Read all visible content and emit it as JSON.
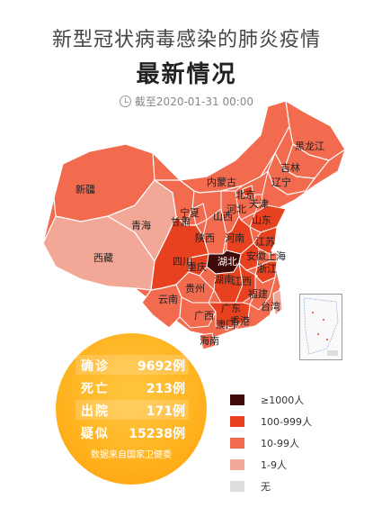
{
  "header": {
    "title": "新型冠状病毒感染的肺炎疫情",
    "subtitle": "最新情况",
    "timestamp": "截至2020-01-31 00:00"
  },
  "colors": {
    "level_1000": "#3e0a0a",
    "level_100": "#e8411f",
    "level_10": "#f26b4f",
    "level_1": "#f3a797",
    "level_0": "#dddddd"
  },
  "provinces": [
    {
      "name": "黑龙江",
      "level": "level_10"
    },
    {
      "name": "吉林",
      "level": "level_10"
    },
    {
      "name": "辽宁",
      "level": "level_10"
    },
    {
      "name": "内蒙古",
      "level": "level_10"
    },
    {
      "name": "新疆",
      "level": "level_10"
    },
    {
      "name": "北京",
      "level": "level_100"
    },
    {
      "name": "天津",
      "level": "level_10"
    },
    {
      "name": "河北",
      "level": "level_10"
    },
    {
      "name": "宁夏",
      "level": "level_10"
    },
    {
      "name": "山西",
      "level": "level_10"
    },
    {
      "name": "山东",
      "level": "level_100"
    },
    {
      "name": "青海",
      "level": "level_1"
    },
    {
      "name": "甘肃",
      "level": "level_10"
    },
    {
      "name": "陕西",
      "level": "level_10"
    },
    {
      "name": "河南",
      "level": "level_100"
    },
    {
      "name": "江苏",
      "level": "level_100"
    },
    {
      "name": "西藏",
      "level": "level_1"
    },
    {
      "name": "四川",
      "level": "level_100"
    },
    {
      "name": "重庆",
      "level": "level_100"
    },
    {
      "name": "湖北",
      "level": "level_1000"
    },
    {
      "name": "安徽",
      "level": "level_100"
    },
    {
      "name": "上海",
      "level": "level_10"
    },
    {
      "name": "浙江",
      "level": "level_100"
    },
    {
      "name": "贵州",
      "level": "level_10"
    },
    {
      "name": "湖南",
      "level": "level_100"
    },
    {
      "name": "江西",
      "level": "level_100"
    },
    {
      "name": "福建",
      "level": "level_10"
    },
    {
      "name": "云南",
      "level": "level_10"
    },
    {
      "name": "广西",
      "level": "level_10"
    },
    {
      "name": "广东",
      "level": "level_100"
    },
    {
      "name": "台湾",
      "level": "level_1"
    },
    {
      "name": "澳门",
      "level": "level_1"
    },
    {
      "name": "香港",
      "level": "level_10"
    },
    {
      "name": "海南",
      "level": "level_10"
    }
  ],
  "stats": [
    {
      "label": "确诊",
      "value": "9692例"
    },
    {
      "label": "死亡",
      "value": "213例"
    },
    {
      "label": "出院",
      "value": "171例"
    },
    {
      "label": "疑似",
      "value": "15238例"
    }
  ],
  "source_note": "数据来自国家卫健委",
  "legend": [
    {
      "label": "≥1000人",
      "color": "#3e0a0a"
    },
    {
      "label": "100-999人",
      "color": "#e8411f"
    },
    {
      "label": "10-99人",
      "color": "#f26b4f"
    },
    {
      "label": "1-9人",
      "color": "#f3a797"
    },
    {
      "label": "无",
      "color": "#dddddd"
    }
  ]
}
